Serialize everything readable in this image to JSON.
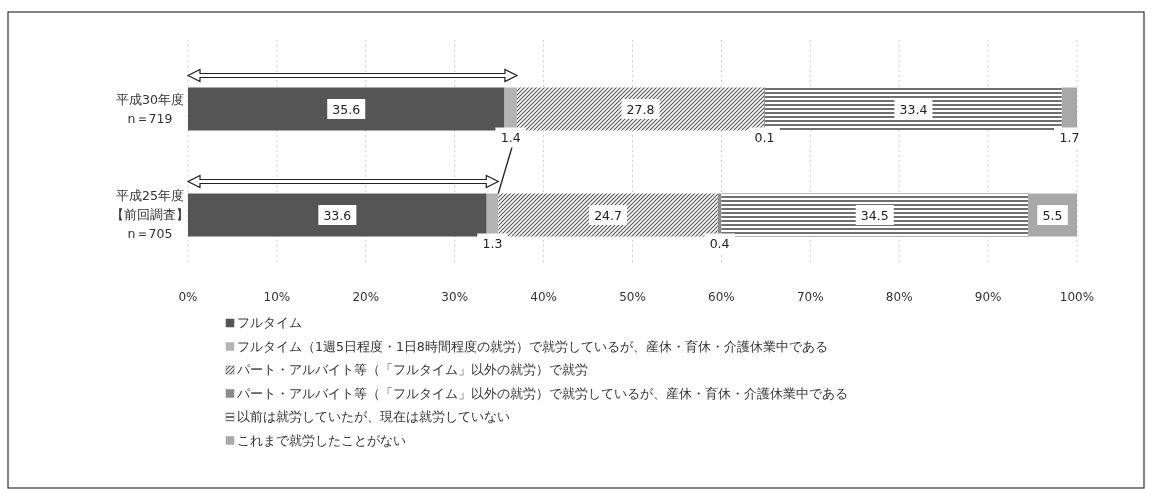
{
  "chart_data": {
    "type": "bar",
    "orientation": "horizontal",
    "stacked": true,
    "data_labels": true,
    "grid": "x",
    "legend": "bottom",
    "categories": [
      "平成30年度 n＝719",
      "平成25年度【前回調査】 n＝705"
    ],
    "xlim": [
      0,
      100
    ],
    "xticks": [
      {
        "value": 0,
        "label": "0%"
      },
      {
        "value": 10,
        "label": "10%"
      },
      {
        "value": 20,
        "label": "20%"
      },
      {
        "value": 30,
        "label": "30%"
      },
      {
        "value": 40,
        "label": "40%"
      },
      {
        "value": 50,
        "label": "50%"
      },
      {
        "value": 60,
        "label": "60%"
      },
      {
        "value": 70,
        "label": "70%"
      },
      {
        "value": 80,
        "label": "80%"
      },
      {
        "value": 90,
        "label": "90%"
      },
      {
        "value": 100,
        "label": "100%"
      }
    ],
    "series": [
      {
        "name": "フルタイム",
        "color": "#555555",
        "values": [
          35.6,
          33.6
        ]
      },
      {
        "name": "フルタイム（1週5日程度・1日8時間程度の就労）で就労しているが、産休・育休・介護休業中である",
        "color": "#b4b4b4",
        "values": [
          1.4,
          1.3
        ]
      },
      {
        "name": "パート・アルバイト等（「フルタイム」以外の就労）で就労",
        "color": "#5a5a5a",
        "values": [
          27.8,
          24.7
        ]
      },
      {
        "name": "パート・アルバイト等（「フルタイム」以外の就労）で就労しているが、産休・育休・介護休業中である",
        "color": "#8c8c8c",
        "values": [
          0.1,
          0.4
        ]
      },
      {
        "name": "以前は就労していたが、現在は就労していない",
        "color": "#707070",
        "values": [
          33.4,
          34.5
        ]
      },
      {
        "name": "これまで就労したことがない",
        "color": "#a8a8a8",
        "values": [
          1.7,
          5.5
        ]
      }
    ]
  }
}
